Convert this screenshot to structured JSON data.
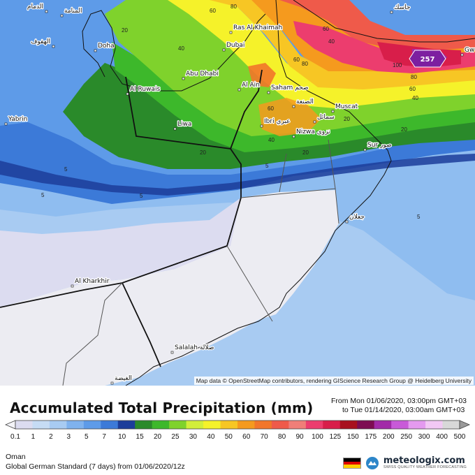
{
  "map": {
    "attribution": "Map data © OpenStreetMap contributors, rendering GIScience Research Group @ Heidelberg University",
    "max_value": "257",
    "places": [
      {
        "name": "الدمام"
      },
      {
        "name": "المنامة"
      },
      {
        "name": "الهفوف"
      },
      {
        "name": "Doha"
      },
      {
        "name": "Yabrin"
      },
      {
        "name": "Al Ruwais"
      },
      {
        "name": "Abu Dhabi"
      },
      {
        "name": "Dubai"
      },
      {
        "name": "Ras Al Khaimah"
      },
      {
        "name": "Al Ain"
      },
      {
        "name": "Saham صحم"
      },
      {
        "name": "الصنعة"
      },
      {
        "name": "Muscat"
      },
      {
        "name": "Liwa"
      },
      {
        "name": "Ibri عبري"
      },
      {
        "name": "سمائل"
      },
      {
        "name": "Nizwa نزوى"
      },
      {
        "name": "Sur صور"
      },
      {
        "name": "جعلان"
      },
      {
        "name": "Al Kharkhir"
      },
      {
        "name": "Salalah صلالة"
      },
      {
        "name": "الغيضة"
      },
      {
        "name": "جاسك"
      },
      {
        "name": "Gw"
      }
    ],
    "contour_labels": [
      "80",
      "60",
      "40",
      "20",
      "5",
      "40",
      "60",
      "80",
      "60",
      "100",
      "80",
      "60",
      "40",
      "20",
      "5",
      "5",
      "5",
      "5",
      "20",
      "40",
      "20",
      "20",
      "60"
    ]
  },
  "title": "Accumulated Total Precipitation (mm)",
  "time": {
    "from": "From Mon 01/06/2020, 03:00pm GMT+03",
    "to": "to Tue 01/14/2020, 03:00am GMT+03"
  },
  "legend": {
    "ticks": [
      "0.1",
      "1",
      "2",
      "3",
      "5",
      "7",
      "10",
      "15",
      "20",
      "25",
      "30",
      "40",
      "50",
      "60",
      "70",
      "80",
      "90",
      "100",
      "125",
      "150",
      "175",
      "200",
      "250",
      "300",
      "400",
      "500"
    ],
    "colors": [
      "#dcdcf0",
      "#c6dcf4",
      "#a8cbf2",
      "#7fb2ee",
      "#5e9be8",
      "#3c7ad8",
      "#1c3d9a",
      "#2a8a2a",
      "#3db82b",
      "#7fd22c",
      "#d2ee3a",
      "#f5f22a",
      "#f7c624",
      "#f59a1e",
      "#f2762a",
      "#ef5a4a",
      "#f07e78",
      "#ec3d6e",
      "#d81e4a",
      "#a8101e",
      "#7d0c52",
      "#a22aa8",
      "#c85ad8",
      "#e49aef",
      "#f2c8f4",
      "#d8d8d8"
    ]
  },
  "region": "Oman",
  "model": "Global German Standard (7 days) from 01/06/2020/12z",
  "brand": {
    "name": "meteologix.com",
    "tagline": "SWISS QUALITY WEATHER FORECASTING",
    "flag_colors": [
      "#000000",
      "#dd0000",
      "#ffce00"
    ]
  }
}
